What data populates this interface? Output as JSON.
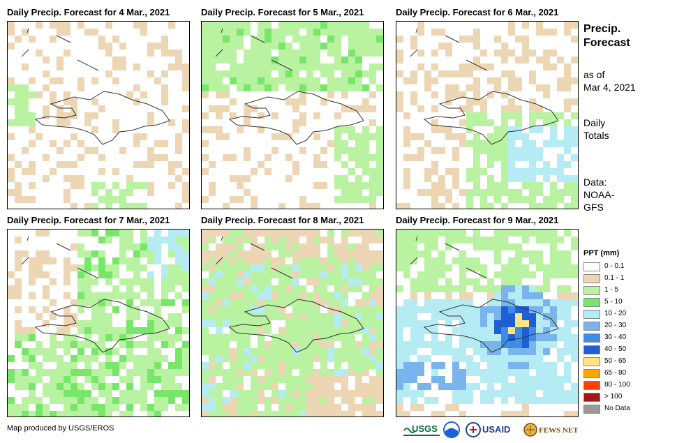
{
  "panels": [
    {
      "title": "Daily Precip. Forecast for 4 Mar., 2021"
    },
    {
      "title": "Daily Precip. Forecast for 5 Mar., 2021"
    },
    {
      "title": "Daily Precip. Forecast for 6 Mar., 2021"
    },
    {
      "title": "Daily Precip. Forecast for 7 Mar., 2021"
    },
    {
      "title": "Daily Precip. Forecast for 8 Mar., 2021"
    },
    {
      "title": "Daily Precip. Forecast for 9 Mar., 2021"
    }
  ],
  "side_info": {
    "title_line1": "Precip.",
    "title_line2": "Forecast",
    "asof_line1": "as of",
    "asof_line2": "Mar 4, 2021",
    "totals_line1": "Daily",
    "totals_line2": "Totals",
    "data_line1": "Data:",
    "data_line2": "NOAA-",
    "data_line3": "GFS"
  },
  "legend": {
    "title": "PPT (mm)",
    "items": [
      {
        "label": "0 - 0.1",
        "color": "#ffffff"
      },
      {
        "label": "0.1 - 1",
        "color": "#ecd6b3"
      },
      {
        "label": "1 - 5",
        "color": "#b9f2a1"
      },
      {
        "label": "5 - 10",
        "color": "#78e66b"
      },
      {
        "label": "10 - 20",
        "color": "#b5ecf4"
      },
      {
        "label": "20 - 30",
        "color": "#79b4ec"
      },
      {
        "label": "30 - 40",
        "color": "#3f8ce6"
      },
      {
        "label": "40 - 50",
        "color": "#1f5fd6"
      },
      {
        "label": "50 - 65",
        "color": "#ffe680"
      },
      {
        "label": "65 - 80",
        "color": "#ffa500"
      },
      {
        "label": "80 - 100",
        "color": "#ff4000"
      },
      {
        "label": "> 100",
        "color": "#a01818"
      },
      {
        "label": "No Data",
        "color": "#999999"
      }
    ]
  },
  "footer": {
    "credit": "Map produced by USGS/EROS",
    "logos": [
      "USGS",
      "NOAA",
      "USAID",
      "FEWS NET"
    ]
  }
}
